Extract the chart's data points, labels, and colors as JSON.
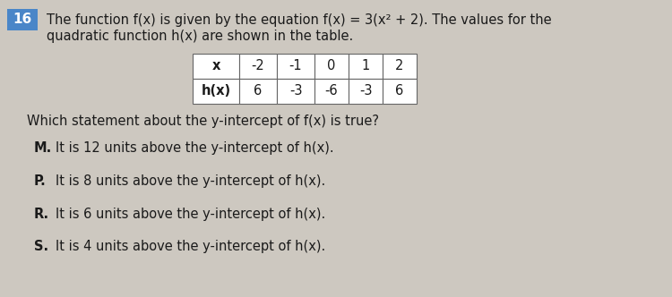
{
  "question_number": "16",
  "question_number_bg": "#4a86c8",
  "question_number_color": "#ffffff",
  "bg_color": "#cdc8c0",
  "text_color": "#1a1a1a",
  "intro_line1": "The function f(x) is given by the equation f(x) = 3(x² + 2). The values for the",
  "intro_line2": "quadratic function h(x) are shown in the table.",
  "table_x_label": "x",
  "table_hx_label": "h(x)",
  "table_x_values": [
    "-2",
    "-1",
    "0",
    "1",
    "2"
  ],
  "table_hx_values": [
    "6",
    "-3",
    "-6",
    "-3",
    "6"
  ],
  "question": "Which statement about the y-intercept of f(x) is true?",
  "options": [
    {
      "letter": "M.",
      "text": "It is 12 units above the y-intercept of h(x)."
    },
    {
      "letter": "P.",
      "text": "It is 8 units above the y-intercept of h(x)."
    },
    {
      "letter": "R.",
      "text": "It is 6 units above the y-intercept of h(x)."
    },
    {
      "letter": "S.",
      "text": "It is 4 units above the y-intercept of h(x)."
    }
  ],
  "font_size_intro": 10.5,
  "font_size_table": 10.5,
  "font_size_question": 10.5,
  "font_size_options": 10.5,
  "font_size_number": 11
}
